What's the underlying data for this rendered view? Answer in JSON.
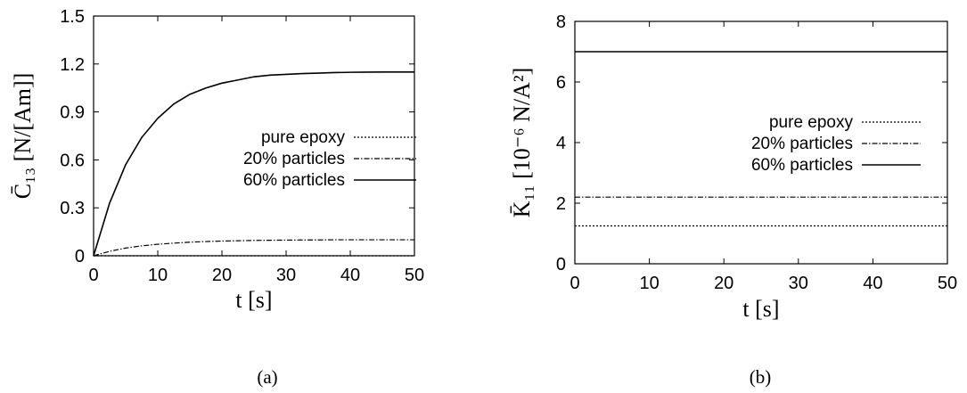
{
  "chart_data": [
    {
      "type": "line",
      "panel": "(a)",
      "xlabel": "t [s]",
      "ylabel": "C̄₁₃ [N/[Am]]",
      "xlim": [
        0,
        50
      ],
      "ylim": [
        0,
        1.5
      ],
      "xticks": [
        "0",
        "10",
        "20",
        "30",
        "40",
        "50"
      ],
      "yticks": [
        "0",
        "0.3",
        "0.6",
        "0.9",
        "1.2",
        "1.5"
      ],
      "grid": false,
      "legend_position": "center-right",
      "x": [
        0,
        2.5,
        5,
        7.5,
        10,
        12.5,
        15,
        17.5,
        20,
        22.5,
        25,
        27.5,
        30,
        32.5,
        35,
        37.5,
        40,
        42.5,
        45,
        47.5,
        50
      ],
      "series": [
        {
          "name": "pure epoxy",
          "style": "dotted",
          "values": [
            0,
            0,
            0,
            0,
            0,
            0,
            0,
            0,
            0,
            0,
            0,
            0,
            0,
            0,
            0,
            0,
            0,
            0,
            0,
            0,
            0
          ]
        },
        {
          "name": "20% particles",
          "style": "dashdot",
          "values": [
            0,
            0.028,
            0.048,
            0.062,
            0.072,
            0.079,
            0.085,
            0.089,
            0.092,
            0.094,
            0.096,
            0.097,
            0.098,
            0.099,
            0.099,
            0.1,
            0.1,
            0.1,
            0.1,
            0.1,
            0.1
          ]
        },
        {
          "name": "60% particles",
          "style": "solid",
          "values": [
            0,
            0.33,
            0.57,
            0.74,
            0.86,
            0.95,
            1.01,
            1.05,
            1.08,
            1.1,
            1.12,
            1.13,
            1.135,
            1.14,
            1.143,
            1.146,
            1.148,
            1.149,
            1.15,
            1.15,
            1.15
          ]
        }
      ]
    },
    {
      "type": "line",
      "panel": "(b)",
      "xlabel": "t [s]",
      "ylabel": "K̄₁₁ [10⁻⁶ N/A²]",
      "xlim": [
        0,
        50
      ],
      "ylim": [
        0,
        8
      ],
      "xticks": [
        "0",
        "10",
        "20",
        "30",
        "40",
        "50"
      ],
      "yticks": [
        "0",
        "2",
        "4",
        "6",
        "8"
      ],
      "grid": false,
      "legend_position": "center-right",
      "x": [
        0,
        50
      ],
      "series": [
        {
          "name": "pure epoxy",
          "style": "dotted",
          "values": [
            1.25,
            1.25
          ]
        },
        {
          "name": "20% particles",
          "style": "dashdot",
          "values": [
            2.2,
            2.2
          ]
        },
        {
          "name": "60% particles",
          "style": "solid",
          "values": [
            7.0,
            7.0
          ]
        }
      ]
    }
  ],
  "captions": [
    "(a)",
    "(b)"
  ]
}
